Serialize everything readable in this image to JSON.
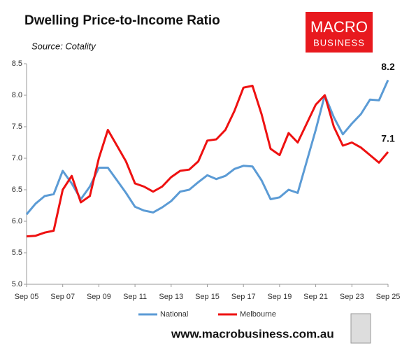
{
  "chart_data": {
    "type": "line",
    "title": "Dwelling Price-to-Income Ratio",
    "subtitle": "Source: Cotality",
    "logo": [
      "MACRO",
      "BUSINESS"
    ],
    "footer": "www.macrobusiness.com.au",
    "categories": [
      "Sep 05",
      null,
      null,
      null,
      "Sep 07",
      null,
      null,
      null,
      "Sep 09",
      null,
      null,
      null,
      "Sep 11",
      null,
      null,
      null,
      "Sep 13",
      null,
      null,
      null,
      "Sep 15",
      null,
      null,
      null,
      "Sep 17",
      null,
      null,
      null,
      "Sep 19",
      null,
      null,
      null,
      "Sep 21",
      null,
      null,
      null,
      "Sep 23",
      null,
      null,
      null,
      "Sep 25"
    ],
    "series": [
      {
        "name": "National",
        "color": "#5b9bd5",
        "values": [
          6.11,
          6.28,
          6.4,
          6.43,
          6.8,
          6.6,
          6.35,
          6.55,
          6.85,
          6.85,
          6.65,
          6.45,
          6.23,
          6.17,
          6.14,
          6.22,
          6.32,
          6.47,
          6.5,
          6.62,
          6.73,
          6.67,
          6.72,
          6.83,
          6.88,
          6.87,
          6.65,
          6.35,
          6.38,
          6.5,
          6.45,
          6.95,
          7.45,
          8.0,
          7.65,
          7.38,
          7.55,
          7.7,
          7.93,
          7.92,
          8.24
        ],
        "value_labels": [
          null,
          null,
          null,
          null,
          null,
          null,
          null,
          null,
          null,
          null,
          null,
          null,
          null,
          null,
          null,
          null,
          null,
          null,
          null,
          null,
          null,
          null,
          null,
          null,
          null,
          null,
          null,
          null,
          null,
          null,
          null,
          null,
          null,
          null,
          null,
          null,
          null,
          null,
          null,
          null,
          "8.2"
        ]
      },
      {
        "name": "Melbourne",
        "color": "#ee1111",
        "values": [
          5.76,
          5.77,
          5.82,
          5.85,
          6.5,
          6.72,
          6.3,
          6.4,
          7.0,
          7.45,
          7.2,
          6.95,
          6.6,
          6.55,
          6.47,
          6.55,
          6.7,
          6.8,
          6.82,
          6.95,
          7.28,
          7.3,
          7.45,
          7.75,
          8.12,
          8.15,
          7.7,
          7.15,
          7.05,
          7.4,
          7.25,
          7.55,
          7.85,
          8.0,
          7.5,
          7.2,
          7.25,
          7.17,
          7.05,
          6.93,
          7.1
        ],
        "value_labels": [
          null,
          null,
          null,
          null,
          null,
          null,
          null,
          null,
          null,
          null,
          null,
          null,
          null,
          null,
          null,
          null,
          null,
          null,
          null,
          null,
          null,
          null,
          null,
          null,
          null,
          null,
          null,
          null,
          null,
          null,
          null,
          null,
          null,
          null,
          null,
          null,
          null,
          null,
          null,
          null,
          "7.1"
        ]
      }
    ],
    "ylim": [
      5,
      8.5
    ],
    "yticks": [
      {
        "value": 5,
        "label": "5.0"
      },
      5.5,
      {
        "value": 6,
        "label": "6.0"
      },
      6.5,
      {
        "value": 7,
        "label": "7.0"
      },
      7.5,
      {
        "value": 8,
        "label": "8.0"
      },
      8.5
    ],
    "grid": false
  }
}
